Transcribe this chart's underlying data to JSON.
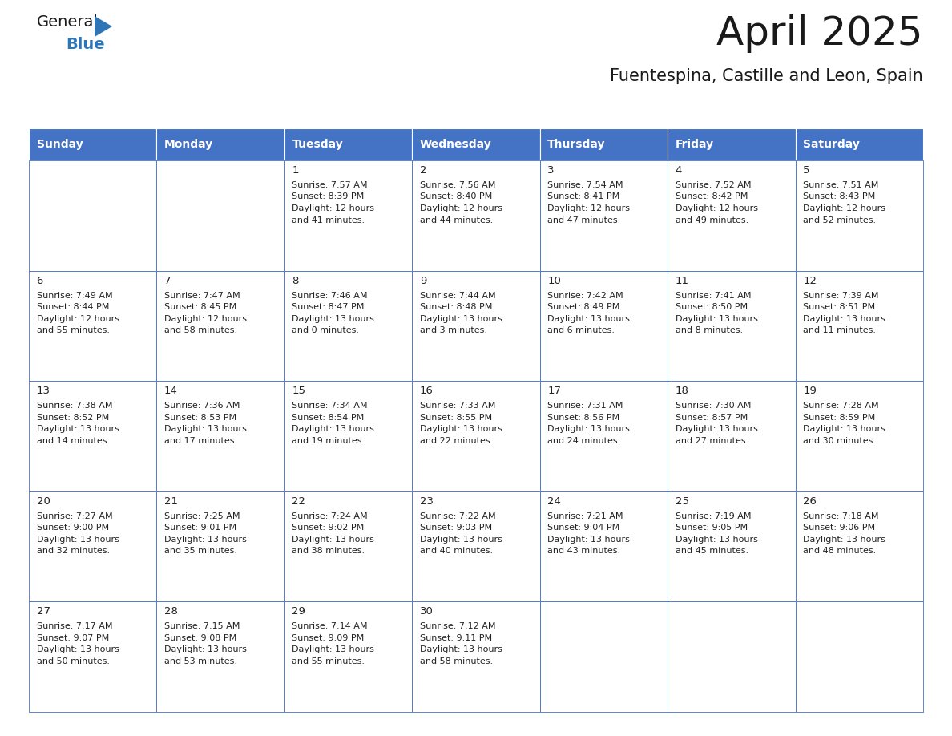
{
  "title": "April 2025",
  "subtitle": "Fuentespina, Castille and Leon, Spain",
  "days_of_week": [
    "Sunday",
    "Monday",
    "Tuesday",
    "Wednesday",
    "Thursday",
    "Friday",
    "Saturday"
  ],
  "header_bg_color": "#4472C4",
  "header_text_color": "#FFFFFF",
  "cell_bg_color": "#FFFFFF",
  "border_color": "#4472C4",
  "title_color": "#1a1a1a",
  "subtitle_color": "#1a1a1a",
  "text_color": "#222222",
  "day_number_color": "#222222",
  "logo_general_color": "#1a1a1a",
  "logo_blue_color": "#2E75B6",
  "logo_triangle_color": "#2E75B6",
  "weeks": [
    [
      {
        "day": null,
        "sunrise": null,
        "sunset": null,
        "daylight": null
      },
      {
        "day": null,
        "sunrise": null,
        "sunset": null,
        "daylight": null
      },
      {
        "day": 1,
        "sunrise": "7:57 AM",
        "sunset": "8:39 PM",
        "daylight": "12 hours and 41 minutes."
      },
      {
        "day": 2,
        "sunrise": "7:56 AM",
        "sunset": "8:40 PM",
        "daylight": "12 hours and 44 minutes."
      },
      {
        "day": 3,
        "sunrise": "7:54 AM",
        "sunset": "8:41 PM",
        "daylight": "12 hours and 47 minutes."
      },
      {
        "day": 4,
        "sunrise": "7:52 AM",
        "sunset": "8:42 PM",
        "daylight": "12 hours and 49 minutes."
      },
      {
        "day": 5,
        "sunrise": "7:51 AM",
        "sunset": "8:43 PM",
        "daylight": "12 hours and 52 minutes."
      }
    ],
    [
      {
        "day": 6,
        "sunrise": "7:49 AM",
        "sunset": "8:44 PM",
        "daylight": "12 hours and 55 minutes."
      },
      {
        "day": 7,
        "sunrise": "7:47 AM",
        "sunset": "8:45 PM",
        "daylight": "12 hours and 58 minutes."
      },
      {
        "day": 8,
        "sunrise": "7:46 AM",
        "sunset": "8:47 PM",
        "daylight": "13 hours and 0 minutes."
      },
      {
        "day": 9,
        "sunrise": "7:44 AM",
        "sunset": "8:48 PM",
        "daylight": "13 hours and 3 minutes."
      },
      {
        "day": 10,
        "sunrise": "7:42 AM",
        "sunset": "8:49 PM",
        "daylight": "13 hours and 6 minutes."
      },
      {
        "day": 11,
        "sunrise": "7:41 AM",
        "sunset": "8:50 PM",
        "daylight": "13 hours and 8 minutes."
      },
      {
        "day": 12,
        "sunrise": "7:39 AM",
        "sunset": "8:51 PM",
        "daylight": "13 hours and 11 minutes."
      }
    ],
    [
      {
        "day": 13,
        "sunrise": "7:38 AM",
        "sunset": "8:52 PM",
        "daylight": "13 hours and 14 minutes."
      },
      {
        "day": 14,
        "sunrise": "7:36 AM",
        "sunset": "8:53 PM",
        "daylight": "13 hours and 17 minutes."
      },
      {
        "day": 15,
        "sunrise": "7:34 AM",
        "sunset": "8:54 PM",
        "daylight": "13 hours and 19 minutes."
      },
      {
        "day": 16,
        "sunrise": "7:33 AM",
        "sunset": "8:55 PM",
        "daylight": "13 hours and 22 minutes."
      },
      {
        "day": 17,
        "sunrise": "7:31 AM",
        "sunset": "8:56 PM",
        "daylight": "13 hours and 24 minutes."
      },
      {
        "day": 18,
        "sunrise": "7:30 AM",
        "sunset": "8:57 PM",
        "daylight": "13 hours and 27 minutes."
      },
      {
        "day": 19,
        "sunrise": "7:28 AM",
        "sunset": "8:59 PM",
        "daylight": "13 hours and 30 minutes."
      }
    ],
    [
      {
        "day": 20,
        "sunrise": "7:27 AM",
        "sunset": "9:00 PM",
        "daylight": "13 hours and 32 minutes."
      },
      {
        "day": 21,
        "sunrise": "7:25 AM",
        "sunset": "9:01 PM",
        "daylight": "13 hours and 35 minutes."
      },
      {
        "day": 22,
        "sunrise": "7:24 AM",
        "sunset": "9:02 PM",
        "daylight": "13 hours and 38 minutes."
      },
      {
        "day": 23,
        "sunrise": "7:22 AM",
        "sunset": "9:03 PM",
        "daylight": "13 hours and 40 minutes."
      },
      {
        "day": 24,
        "sunrise": "7:21 AM",
        "sunset": "9:04 PM",
        "daylight": "13 hours and 43 minutes."
      },
      {
        "day": 25,
        "sunrise": "7:19 AM",
        "sunset": "9:05 PM",
        "daylight": "13 hours and 45 minutes."
      },
      {
        "day": 26,
        "sunrise": "7:18 AM",
        "sunset": "9:06 PM",
        "daylight": "13 hours and 48 minutes."
      }
    ],
    [
      {
        "day": 27,
        "sunrise": "7:17 AM",
        "sunset": "9:07 PM",
        "daylight": "13 hours and 50 minutes."
      },
      {
        "day": 28,
        "sunrise": "7:15 AM",
        "sunset": "9:08 PM",
        "daylight": "13 hours and 53 minutes."
      },
      {
        "day": 29,
        "sunrise": "7:14 AM",
        "sunset": "9:09 PM",
        "daylight": "13 hours and 55 minutes."
      },
      {
        "day": 30,
        "sunrise": "7:12 AM",
        "sunset": "9:11 PM",
        "daylight": "13 hours and 58 minutes."
      },
      {
        "day": null,
        "sunrise": null,
        "sunset": null,
        "daylight": null
      },
      {
        "day": null,
        "sunrise": null,
        "sunset": null,
        "daylight": null
      },
      {
        "day": null,
        "sunrise": null,
        "sunset": null,
        "daylight": null
      }
    ]
  ]
}
